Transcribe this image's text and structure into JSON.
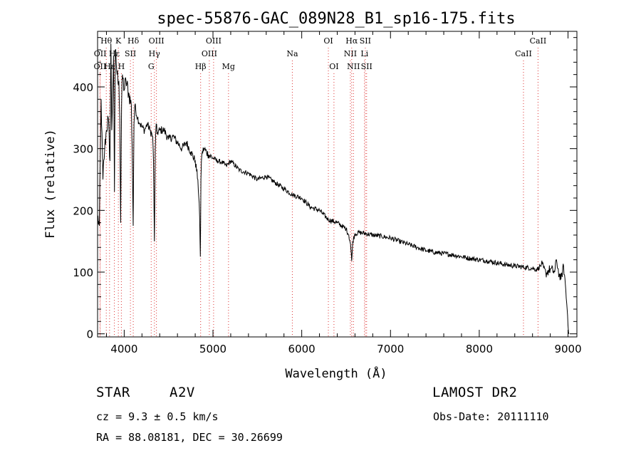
{
  "chart_data": {
    "type": "line",
    "title": "spec-55876-GAC_089N28_B1_sp16-175.fits",
    "xlabel": "Wavelength (Å)",
    "ylabel": "Flux (relative)",
    "xlim": [
      3700,
      9100
    ],
    "ylim": [
      -5,
      490
    ],
    "x_ticks": [
      4000,
      5000,
      6000,
      7000,
      8000,
      9000
    ],
    "y_ticks": [
      0,
      100,
      200,
      300,
      400
    ],
    "line_color": "#000000",
    "marker_line_color": "#dd3333",
    "series": [
      {
        "x": [
          3700,
          3720,
          3740,
          3760,
          3780,
          3800,
          3820,
          3840,
          3850,
          3860,
          3870,
          3880,
          3890,
          3900,
          3920,
          3940,
          3950,
          3960,
          3970,
          3980,
          4000,
          4020,
          4050,
          4080,
          4090,
          4101,
          4110,
          4120,
          4150,
          4180,
          4200,
          4230,
          4260,
          4290,
          4320,
          4330,
          4340,
          4350,
          4360,
          4370,
          4400,
          4450,
          4500,
          4550,
          4600,
          4650,
          4700,
          4750,
          4800,
          4830,
          4850,
          4858,
          4861,
          4864,
          4870,
          4880,
          4900,
          4950,
          5000,
          5050,
          5100,
          5150,
          5200,
          5300,
          5400,
          5500,
          5600,
          5700,
          5800,
          5900,
          6000,
          6100,
          6200,
          6300,
          6400,
          6500,
          6530,
          6550,
          6563,
          6575,
          6600,
          6650,
          6700,
          6800,
          6900,
          7000,
          7100,
          7200,
          7300,
          7400,
          7500,
          7600,
          7700,
          7800,
          7900,
          8000,
          8100,
          8200,
          8300,
          8400,
          8500,
          8600,
          8650,
          8700,
          8750,
          8800,
          8850,
          8870,
          8900,
          8920,
          8950,
          8970,
          8990,
          9010
        ],
        "y": [
          190,
          175,
          380,
          250,
          300,
          330,
          350,
          280,
          470,
          330,
          390,
          450,
          230,
          460,
          420,
          410,
          350,
          180,
          370,
          420,
          395,
          410,
          390,
          370,
          300,
          175,
          340,
          370,
          350,
          340,
          335,
          330,
          340,
          330,
          320,
          280,
          150,
          300,
          340,
          325,
          330,
          330,
          315,
          320,
          310,
          300,
          310,
          295,
          280,
          250,
          190,
          125,
          180,
          250,
          280,
          295,
          300,
          290,
          285,
          280,
          278,
          272,
          280,
          265,
          260,
          250,
          255,
          245,
          235,
          225,
          220,
          205,
          200,
          185,
          180,
          170,
          160,
          145,
          118,
          150,
          162,
          164,
          163,
          160,
          158,
          155,
          150,
          145,
          140,
          135,
          132,
          130,
          128,
          125,
          122,
          120,
          118,
          115,
          112,
          110,
          108,
          106,
          104,
          112,
          98,
          105,
          100,
          120,
          95,
          88,
          110,
          80,
          40,
          0
        ]
      }
    ],
    "line_markers": [
      {
        "label": "OII",
        "x": 3727,
        "row": 3
      },
      {
        "label": "OII",
        "x": 3729,
        "row": 2
      },
      {
        "label": "Hθ",
        "x": 3798,
        "row": 1
      },
      {
        "label": "Hε",
        "x": 3835,
        "row": 3
      },
      {
        "label": "Hε",
        "x": 3889,
        "row": 2
      },
      {
        "label": "K",
        "x": 3934,
        "row": 1
      },
      {
        "label": "H",
        "x": 3968,
        "row": 3
      },
      {
        "label": "SII",
        "x": 4070,
        "row": 2
      },
      {
        "label": "Hδ",
        "x": 4102,
        "row": 1
      },
      {
        "label": "G",
        "x": 4304,
        "row": 3
      },
      {
        "label": "Hγ",
        "x": 4340,
        "row": 2
      },
      {
        "label": "OIII",
        "x": 4363,
        "row": 1
      },
      {
        "label": "Hβ",
        "x": 4861,
        "row": 3
      },
      {
        "label": "OIII",
        "x": 4959,
        "row": 2
      },
      {
        "label": "OIII",
        "x": 5007,
        "row": 1
      },
      {
        "label": "Mg",
        "x": 5175,
        "row": 3
      },
      {
        "label": "Na",
        "x": 5894,
        "row": 2
      },
      {
        "label": "OI",
        "x": 6300,
        "row": 1
      },
      {
        "label": "OI",
        "x": 6363,
        "row": 3
      },
      {
        "label": "NII",
        "x": 6548,
        "row": 2
      },
      {
        "label": "Hα",
        "x": 6563,
        "row": 1
      },
      {
        "label": "NII",
        "x": 6583,
        "row": 3
      },
      {
        "label": "Li",
        "x": 6707,
        "row": 2
      },
      {
        "label": "SII",
        "x": 6716,
        "row": 1
      },
      {
        "label": "SII",
        "x": 6731,
        "row": 3
      },
      {
        "label": "CaII",
        "x": 8498,
        "row": 2
      },
      {
        "label": "CaII",
        "x": 8662,
        "row": 1
      }
    ]
  },
  "info": {
    "class": "STAR",
    "subclass": "A2V",
    "survey": "LAMOST DR2",
    "cz": "cz = 9.3 ± 0.5 km/s",
    "obs_date": "Obs-Date: 20111110",
    "coords": "RA =  88.08181, DEC =  30.26699"
  }
}
